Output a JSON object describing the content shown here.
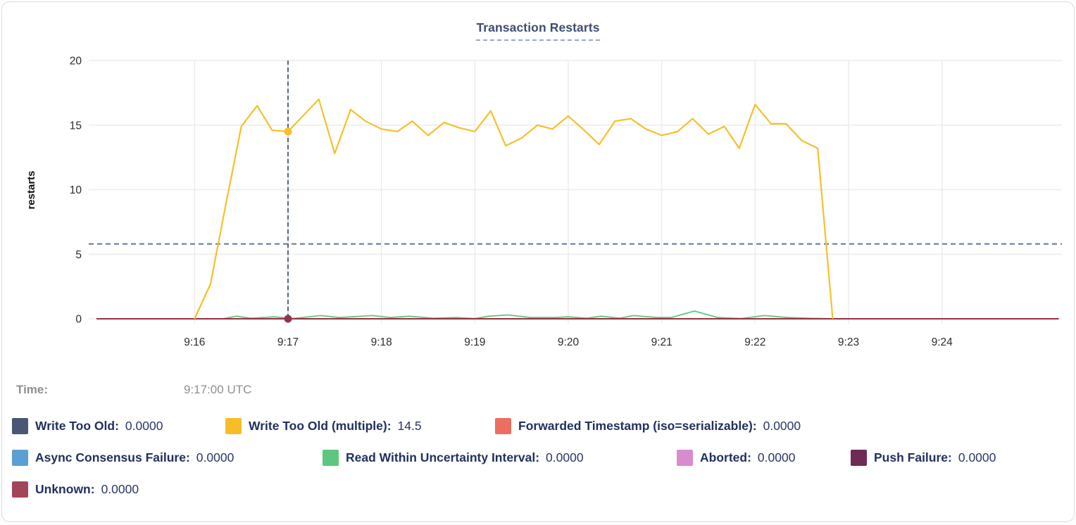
{
  "title": {
    "text": "Transaction Restarts"
  },
  "time_row": {
    "label": "Time:",
    "value": "9:17:00 UTC"
  },
  "legend": {
    "rows": [
      {
        "items": [
          {
            "label": "Write Too Old:",
            "value": "0.0000",
            "color": "#475872"
          },
          {
            "label": "Write Too Old (multiple):",
            "value": "14.5",
            "color": "#f5bd27"
          },
          {
            "label": "Forwarded Timestamp (iso=serializable):",
            "value": "0.0000",
            "color": "#ec6e5f"
          }
        ]
      },
      {
        "items": [
          {
            "label": "Async Consensus Failure:",
            "value": "0.0000",
            "color": "#5c9fd4"
          },
          {
            "label": "Read Within Uncertainty Interval:",
            "value": "0.0000",
            "color": "#5ec77f"
          },
          {
            "label": "Aborted:",
            "value": "0.0000",
            "color": "#d88bcd"
          },
          {
            "label": "Push Failure:",
            "value": "0.0000",
            "color": "#6e2b56"
          }
        ]
      },
      {
        "items": [
          {
            "label": "Unknown:",
            "value": "0.0000",
            "color": "#a3455a"
          }
        ]
      }
    ]
  },
  "chart_data": {
    "type": "line",
    "title": "Transaction Restarts",
    "xlabel": "",
    "ylabel": "restarts",
    "ylim": [
      0,
      20
    ],
    "x_domain_minutes_after_9": [
      14.95,
      25.25
    ],
    "grid": true,
    "y_ticks": [
      {
        "label": "0",
        "v": 0
      },
      {
        "label": "5",
        "v": 5
      },
      {
        "label": "10",
        "v": 10
      },
      {
        "label": "15",
        "v": 15
      },
      {
        "label": "20",
        "v": 20
      }
    ],
    "x_ticks": [
      {
        "label": "9:16",
        "t": 16
      },
      {
        "label": "9:17",
        "t": 17
      },
      {
        "label": "9:18",
        "t": 18
      },
      {
        "label": "9:19",
        "t": 19
      },
      {
        "label": "9:20",
        "t": 20
      },
      {
        "label": "9:21",
        "t": 21
      },
      {
        "label": "9:22",
        "t": 22
      },
      {
        "label": "9:23",
        "t": 23
      },
      {
        "label": "9:24",
        "t": 24
      }
    ],
    "threshold_line": {
      "y": 5.8,
      "color": "#5f7793",
      "style": "dashed"
    },
    "hover": {
      "t": 17.0,
      "time_label": "9:17:00 UTC",
      "line_color": "#3e5168",
      "dots": [
        {
          "series": "Write Too Old (multiple)",
          "value": 14.5,
          "color": "#f5c02c"
        },
        {
          "series": "Unknown",
          "value": 0,
          "color": "#93344a"
        }
      ]
    },
    "series": [
      {
        "name": "Write Too Old",
        "color": "#475872",
        "width": 1.5,
        "points": [
          [
            14.95,
            0
          ],
          [
            25.25,
            0
          ]
        ]
      },
      {
        "name": "Forwarded Timestamp (iso=serializable)",
        "color": "#ec6e5f",
        "width": 1.5,
        "points": [
          [
            14.95,
            0
          ],
          [
            25.25,
            0
          ]
        ]
      },
      {
        "name": "Async Consensus Failure",
        "color": "#5c9fd4",
        "width": 1.5,
        "points": [
          [
            14.95,
            0
          ],
          [
            25.25,
            0
          ]
        ]
      },
      {
        "name": "Aborted",
        "color": "#d88bcd",
        "width": 1.5,
        "points": [
          [
            14.95,
            0
          ],
          [
            25.25,
            0
          ]
        ]
      },
      {
        "name": "Push Failure",
        "color": "#6e2b56",
        "width": 1.5,
        "points": [
          [
            14.95,
            0
          ],
          [
            25.25,
            0
          ]
        ]
      },
      {
        "name": "Read Within Uncertainty Interval",
        "color": "#5ec77f",
        "width": 1.8,
        "points": [
          [
            14.95,
            0
          ],
          [
            16.3,
            0
          ],
          [
            16.45,
            0.2
          ],
          [
            16.6,
            0.05
          ],
          [
            16.85,
            0.15
          ],
          [
            17.05,
            0.02
          ],
          [
            17.35,
            0.25
          ],
          [
            17.55,
            0.1
          ],
          [
            17.9,
            0.25
          ],
          [
            18.1,
            0.1
          ],
          [
            18.3,
            0.2
          ],
          [
            18.55,
            0.05
          ],
          [
            18.8,
            0.1
          ],
          [
            19.0,
            0.02
          ],
          [
            19.15,
            0.2
          ],
          [
            19.35,
            0.3
          ],
          [
            19.6,
            0.1
          ],
          [
            19.85,
            0.1
          ],
          [
            20.0,
            0.15
          ],
          [
            20.2,
            0.05
          ],
          [
            20.35,
            0.2
          ],
          [
            20.55,
            0.05
          ],
          [
            20.7,
            0.25
          ],
          [
            20.95,
            0.1
          ],
          [
            21.1,
            0.1
          ],
          [
            21.35,
            0.6
          ],
          [
            21.6,
            0.1
          ],
          [
            21.85,
            0.02
          ],
          [
            22.1,
            0.25
          ],
          [
            22.35,
            0.1
          ],
          [
            22.55,
            0.05
          ],
          [
            22.85,
            0
          ],
          [
            25.25,
            0
          ]
        ]
      },
      {
        "name": "Unknown",
        "color": "#9a2f41",
        "width": 2,
        "points": [
          [
            14.95,
            0
          ],
          [
            25.25,
            0
          ]
        ]
      },
      {
        "name": "Write Too Old (multiple)",
        "color": "#f5c02c",
        "width": 2.2,
        "points": [
          [
            16.0,
            0
          ],
          [
            16.17,
            2.7
          ],
          [
            16.33,
            8.7
          ],
          [
            16.5,
            14.9
          ],
          [
            16.67,
            16.5
          ],
          [
            16.83,
            14.6
          ],
          [
            17.0,
            14.5
          ],
          [
            17.17,
            15.8
          ],
          [
            17.33,
            17.0
          ],
          [
            17.5,
            12.8
          ],
          [
            17.67,
            16.2
          ],
          [
            17.83,
            15.3
          ],
          [
            18.0,
            14.7
          ],
          [
            18.17,
            14.5
          ],
          [
            18.33,
            15.3
          ],
          [
            18.5,
            14.2
          ],
          [
            18.67,
            15.2
          ],
          [
            18.83,
            14.8
          ],
          [
            19.0,
            14.5
          ],
          [
            19.17,
            16.1
          ],
          [
            19.33,
            13.4
          ],
          [
            19.5,
            14.0
          ],
          [
            19.67,
            15.0
          ],
          [
            19.83,
            14.7
          ],
          [
            20.0,
            15.7
          ],
          [
            20.17,
            14.6
          ],
          [
            20.33,
            13.5
          ],
          [
            20.5,
            15.3
          ],
          [
            20.67,
            15.5
          ],
          [
            20.83,
            14.7
          ],
          [
            21.0,
            14.2
          ],
          [
            21.17,
            14.5
          ],
          [
            21.33,
            15.5
          ],
          [
            21.5,
            14.3
          ],
          [
            21.67,
            14.9
          ],
          [
            21.83,
            13.2
          ],
          [
            22.0,
            16.6
          ],
          [
            22.17,
            15.1
          ],
          [
            22.33,
            15.1
          ],
          [
            22.5,
            13.8
          ],
          [
            22.67,
            13.2
          ],
          [
            22.83,
            0
          ]
        ]
      }
    ]
  }
}
